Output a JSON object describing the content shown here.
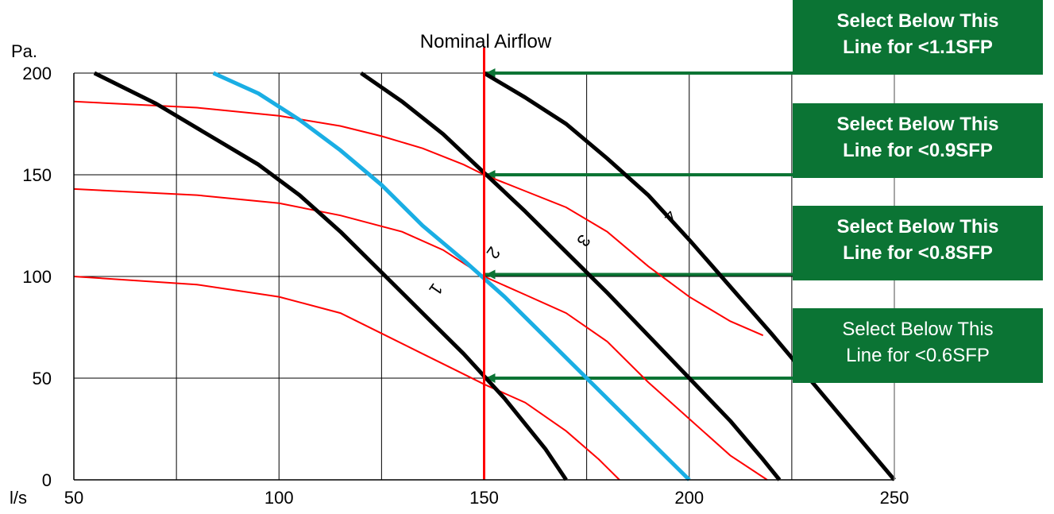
{
  "chart_data": {
    "type": "line",
    "xlabel": "l/s",
    "ylabel": "Pa.",
    "xlim": [
      50,
      250
    ],
    "ylim": [
      0,
      200
    ],
    "x_ticks": [
      50,
      100,
      150,
      200,
      250
    ],
    "y_ticks": [
      0,
      50,
      100,
      150,
      200
    ],
    "grid": true,
    "grid_x": [
      50,
      75,
      100,
      125,
      150,
      175,
      200,
      225,
      250
    ],
    "grid_y": [
      0,
      50,
      100,
      150,
      200
    ],
    "colors": {
      "fan_curve": "#000000",
      "fan_curve_2": "#1aaee4",
      "system_curve": "#ff0000",
      "sfp_line": "#0b7434",
      "box_fill": "#0b7434"
    },
    "fan_curves": [
      {
        "name": "1",
        "color": "#000000",
        "points": [
          [
            55,
            200
          ],
          [
            70,
            185
          ],
          [
            85,
            167
          ],
          [
            95,
            155
          ],
          [
            105,
            140
          ],
          [
            115,
            122
          ],
          [
            125,
            102
          ],
          [
            135,
            82
          ],
          [
            145,
            62
          ],
          [
            155,
            40
          ],
          [
            165,
            15
          ],
          [
            170,
            0
          ]
        ]
      },
      {
        "name": "2",
        "color": "#1aaee4",
        "points": [
          [
            84,
            200
          ],
          [
            95,
            190
          ],
          [
            105,
            177
          ],
          [
            115,
            162
          ],
          [
            125,
            145
          ],
          [
            135,
            125
          ],
          [
            145,
            108
          ],
          [
            155,
            90
          ],
          [
            165,
            70
          ],
          [
            175,
            50
          ],
          [
            185,
            30
          ],
          [
            195,
            10
          ],
          [
            200,
            0
          ]
        ]
      },
      {
        "name": "3",
        "color": "#000000",
        "points": [
          [
            120,
            200
          ],
          [
            130,
            186
          ],
          [
            140,
            170
          ],
          [
            150,
            151
          ],
          [
            160,
            132
          ],
          [
            170,
            112
          ],
          [
            180,
            92
          ],
          [
            190,
            71
          ],
          [
            200,
            50
          ],
          [
            210,
            29
          ],
          [
            218,
            10
          ],
          [
            222,
            0
          ]
        ]
      },
      {
        "name": "4",
        "color": "#000000",
        "points": [
          [
            150,
            200
          ],
          [
            160,
            188
          ],
          [
            170,
            175
          ],
          [
            180,
            158
          ],
          [
            190,
            140
          ],
          [
            200,
            118
          ],
          [
            210,
            95
          ],
          [
            220,
            72
          ],
          [
            230,
            48
          ],
          [
            240,
            24
          ],
          [
            250,
            0
          ]
        ]
      }
    ],
    "system_curves": [
      {
        "points": [
          [
            50,
            100
          ],
          [
            80,
            96
          ],
          [
            100,
            90
          ],
          [
            115,
            82
          ],
          [
            125,
            72
          ],
          [
            135,
            62
          ],
          [
            142,
            55
          ],
          [
            150,
            47
          ],
          [
            160,
            38
          ],
          [
            170,
            24
          ],
          [
            178,
            10
          ],
          [
            183,
            0
          ]
        ]
      },
      {
        "points": [
          [
            50,
            143
          ],
          [
            80,
            140
          ],
          [
            100,
            136
          ],
          [
            115,
            130
          ],
          [
            130,
            122
          ],
          [
            140,
            113
          ],
          [
            150,
            100
          ],
          [
            160,
            91
          ],
          [
            170,
            82
          ],
          [
            180,
            68
          ],
          [
            190,
            48
          ],
          [
            200,
            30
          ],
          [
            210,
            12
          ],
          [
            219,
            0
          ]
        ]
      },
      {
        "points": [
          [
            50,
            186
          ],
          [
            80,
            183
          ],
          [
            100,
            179
          ],
          [
            115,
            174
          ],
          [
            125,
            169
          ],
          [
            135,
            163
          ],
          [
            145,
            155
          ],
          [
            150,
            150
          ],
          [
            160,
            142
          ],
          [
            170,
            134
          ],
          [
            180,
            122
          ],
          [
            190,
            105
          ],
          [
            200,
            90
          ],
          [
            210,
            78
          ],
          [
            218,
            71
          ]
        ]
      }
    ],
    "nominal_airflow": {
      "x": 150,
      "label": "Nominal Airflow",
      "color": "#ff0000"
    },
    "sfp_lines": [
      {
        "y": 200,
        "text1": "Select Below This",
        "text2": "Line for <1.1SFP",
        "bold": true
      },
      {
        "y": 150,
        "text1": "Select Below This",
        "text2": "Line for <0.9SFP",
        "bold": true
      },
      {
        "y": 101,
        "text1": "Select Below This",
        "text2": "Line for <0.8SFP",
        "bold": true
      },
      {
        "y": 50,
        "text1": "Select Below This",
        "text2": "Line for <0.6SFP",
        "bold": false
      }
    ]
  }
}
